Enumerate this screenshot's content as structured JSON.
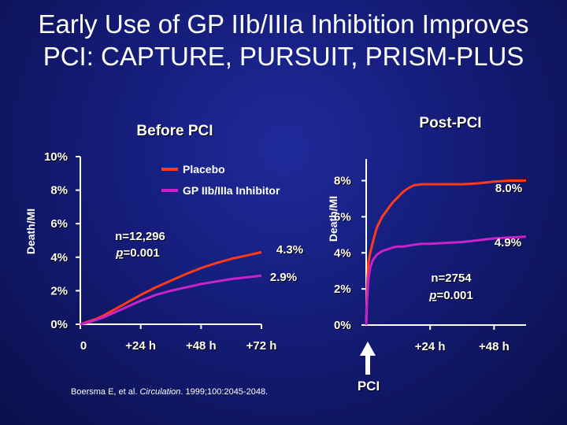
{
  "slide": {
    "title_line1": "Early Use of GP IIb/IIIa Inhibition Improves",
    "title_line2": "PCI: CAPTURE, PURSUIT, PRISM-PLUS",
    "citation_prefix": "Boersma E, et al. ",
    "citation_journal": "Circulation",
    "citation_suffix": ". 1999;100:2045-2048."
  },
  "colors": {
    "placebo": "#ff3b1a",
    "inhibitor": "#c822c8",
    "axis": "#ffffff"
  },
  "chart_data": [
    {
      "type": "line",
      "title": "Before PCI",
      "ylabel": "Death/MI",
      "ylim": [
        0,
        10
      ],
      "yticks": [
        0,
        2,
        4,
        6,
        8,
        10
      ],
      "ytick_labels": [
        "0%",
        "2%",
        "4%",
        "6%",
        "8%",
        "10%"
      ],
      "xlim": [
        0,
        72
      ],
      "xticks": [
        0,
        24,
        48,
        72
      ],
      "xtick_labels": [
        "0",
        "+24 h",
        "+48 h",
        "+72 h"
      ],
      "legend": [
        "Placebo",
        "GP IIb/IIIa Inhibitor"
      ],
      "annotation_line1": "n=12,296",
      "annotation_line2_p": "p",
      "annotation_line2_rest": "=0.001",
      "series": [
        {
          "name": "Placebo",
          "end_label": "4.3%",
          "x": [
            0,
            3,
            6,
            9,
            12,
            15,
            18,
            21,
            24,
            30,
            36,
            42,
            48,
            54,
            60,
            66,
            72
          ],
          "y": [
            0,
            0.15,
            0.3,
            0.5,
            0.75,
            1.0,
            1.25,
            1.5,
            1.75,
            2.2,
            2.6,
            3.0,
            3.35,
            3.65,
            3.9,
            4.1,
            4.3
          ]
        },
        {
          "name": "GP IIb/IIIa Inhibitor",
          "end_label": "2.9%",
          "x": [
            0,
            3,
            6,
            9,
            12,
            15,
            18,
            21,
            24,
            30,
            36,
            42,
            48,
            54,
            60,
            66,
            72
          ],
          "y": [
            0,
            0.1,
            0.25,
            0.4,
            0.6,
            0.8,
            1.0,
            1.2,
            1.4,
            1.75,
            2.0,
            2.2,
            2.4,
            2.55,
            2.7,
            2.8,
            2.9
          ]
        }
      ]
    },
    {
      "type": "line",
      "title": "Post-PCI",
      "ylabel": "Death/MI",
      "ylim": [
        0,
        9.2
      ],
      "yticks": [
        0,
        2,
        4,
        6,
        8
      ],
      "ytick_labels": [
        "0%",
        "2%",
        "4%",
        "6%",
        "8%"
      ],
      "xlim": [
        0,
        60
      ],
      "xticks": [
        24,
        48
      ],
      "xtick_labels": [
        "+24 h",
        "+48 h"
      ],
      "event_label": "PCI",
      "annotation_line1": "n=2754",
      "annotation_line2_p": "p",
      "annotation_line2_rest": "=0.001",
      "series": [
        {
          "name": "Placebo",
          "end_label": "8.0%",
          "x": [
            0,
            0.3,
            0.8,
            1.5,
            2.5,
            4,
            6,
            8,
            10,
            12,
            14,
            16,
            18,
            21,
            24,
            30,
            36,
            42,
            48,
            54,
            60
          ],
          "y": [
            0,
            2.0,
            3.4,
            4.0,
            4.6,
            5.4,
            6.0,
            6.4,
            6.8,
            7.1,
            7.4,
            7.6,
            7.75,
            7.8,
            7.8,
            7.8,
            7.8,
            7.85,
            7.95,
            8.0,
            8.0
          ]
        },
        {
          "name": "GP IIb/IIIa Inhibitor",
          "end_label": "4.9%",
          "x": [
            0,
            0.3,
            0.8,
            1.5,
            2.5,
            4,
            6,
            8,
            10,
            12,
            14,
            16,
            18,
            21,
            24,
            30,
            36,
            42,
            48,
            54,
            60
          ],
          "y": [
            0,
            1.3,
            2.5,
            3.2,
            3.6,
            3.9,
            4.1,
            4.2,
            4.3,
            4.35,
            4.35,
            4.4,
            4.45,
            4.5,
            4.5,
            4.55,
            4.6,
            4.7,
            4.8,
            4.85,
            4.9
          ]
        }
      ]
    }
  ]
}
